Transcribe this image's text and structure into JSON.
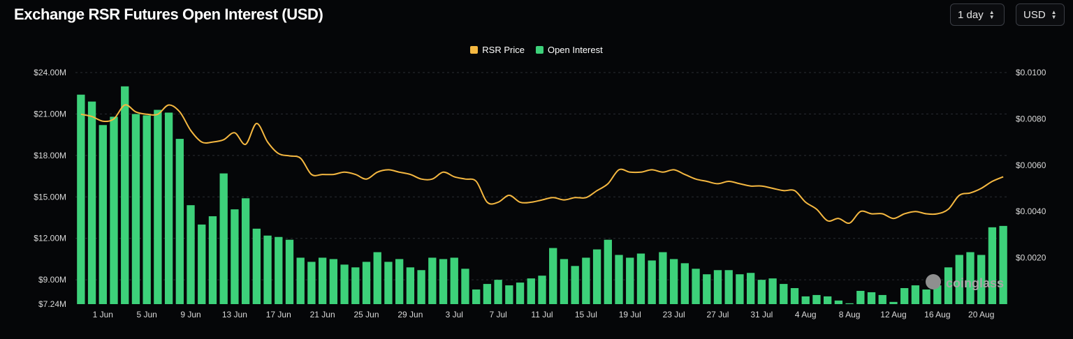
{
  "header": {
    "title": "Exchange RSR Futures Open Interest (USD)",
    "range_label": "1 day",
    "currency_label": "USD"
  },
  "watermark": {
    "text": "coinglass"
  },
  "chart_data": {
    "type": "bar",
    "title": "Exchange RSR Futures Open Interest (USD)",
    "legend_position": "top-center",
    "grid": true,
    "series": [
      {
        "name": "RSR Price",
        "kind": "line",
        "axis": "right",
        "color": "#F5B841",
        "values": [
          0.0082,
          0.0081,
          0.0079,
          0.008,
          0.0086,
          0.0083,
          0.0082,
          0.0082,
          0.0086,
          0.0083,
          0.0075,
          0.007,
          0.007,
          0.0071,
          0.0074,
          0.0069,
          0.0078,
          0.007,
          0.0065,
          0.0064,
          0.0063,
          0.0056,
          0.0056,
          0.0056,
          0.0057,
          0.0056,
          0.0054,
          0.0057,
          0.0058,
          0.0057,
          0.0056,
          0.0054,
          0.0054,
          0.0057,
          0.0055,
          0.0054,
          0.0053,
          0.0044,
          0.0044,
          0.0047,
          0.0044,
          0.0044,
          0.0045,
          0.0046,
          0.0045,
          0.0046,
          0.0046,
          0.0049,
          0.0052,
          0.0058,
          0.0057,
          0.0057,
          0.0058,
          0.0057,
          0.0058,
          0.0056,
          0.0054,
          0.0053,
          0.0052,
          0.0053,
          0.0052,
          0.0051,
          0.0051,
          0.005,
          0.0049,
          0.0049,
          0.0044,
          0.0041,
          0.0036,
          0.0037,
          0.0035,
          0.004,
          0.0039,
          0.0039,
          0.0037,
          0.0039,
          0.004,
          0.0039,
          0.0039,
          0.0041,
          0.0047,
          0.0048,
          0.005,
          0.0053,
          0.0055
        ]
      },
      {
        "name": "Open Interest",
        "kind": "bar",
        "axis": "left",
        "color": "#3DD17A",
        "values": [
          22.4,
          21.9,
          20.2,
          20.8,
          23.0,
          21.0,
          20.9,
          21.3,
          21.1,
          19.2,
          14.4,
          13.0,
          13.6,
          16.7,
          14.1,
          14.9,
          12.7,
          12.2,
          12.1,
          11.9,
          10.6,
          10.3,
          10.6,
          10.5,
          10.1,
          9.9,
          10.3,
          11.0,
          10.3,
          10.5,
          9.9,
          9.7,
          10.6,
          10.5,
          10.6,
          9.8,
          8.3,
          8.7,
          9.0,
          8.6,
          8.8,
          9.1,
          9.3,
          11.3,
          10.5,
          10.0,
          10.6,
          11.2,
          11.9,
          10.8,
          10.6,
          10.9,
          10.4,
          11.0,
          10.5,
          10.2,
          9.8,
          9.4,
          9.7,
          9.7,
          9.4,
          9.5,
          9.0,
          9.1,
          8.7,
          8.4,
          7.8,
          7.9,
          7.8,
          7.5,
          7.3,
          8.2,
          8.1,
          7.9,
          7.4,
          8.4,
          8.6,
          8.3,
          8.6,
          9.9,
          10.8,
          11.0,
          10.8,
          12.8,
          12.9
        ]
      }
    ],
    "x_tick_labels": [
      "1 Jun",
      "5 Jun",
      "9 Jun",
      "13 Jun",
      "17 Jun",
      "21 Jun",
      "25 Jun",
      "29 Jun",
      "3 Jul",
      "7 Jul",
      "11 Jul",
      "15 Jul",
      "19 Jul",
      "23 Jul",
      "27 Jul",
      "31 Jul",
      "4 Aug",
      "8 Aug",
      "12 Aug",
      "16 Aug",
      "20 Aug"
    ],
    "y_left": {
      "ticks": [
        "$24.00M",
        "$21.00M",
        "$18.00M",
        "$15.00M",
        "$12.00M",
        "$9.00M",
        "$7.24M"
      ],
      "tick_values": [
        24,
        21,
        18,
        15,
        12,
        9,
        7.24
      ],
      "ylim": [
        7.24,
        24
      ]
    },
    "y_right": {
      "ticks": [
        "$0.0100",
        "$0.0080",
        "$0.0060",
        "$0.0040",
        "$0.0020"
      ],
      "tick_values": [
        0.01,
        0.008,
        0.006,
        0.004,
        0.002
      ],
      "ylim": [
        0,
        0.01
      ]
    }
  }
}
